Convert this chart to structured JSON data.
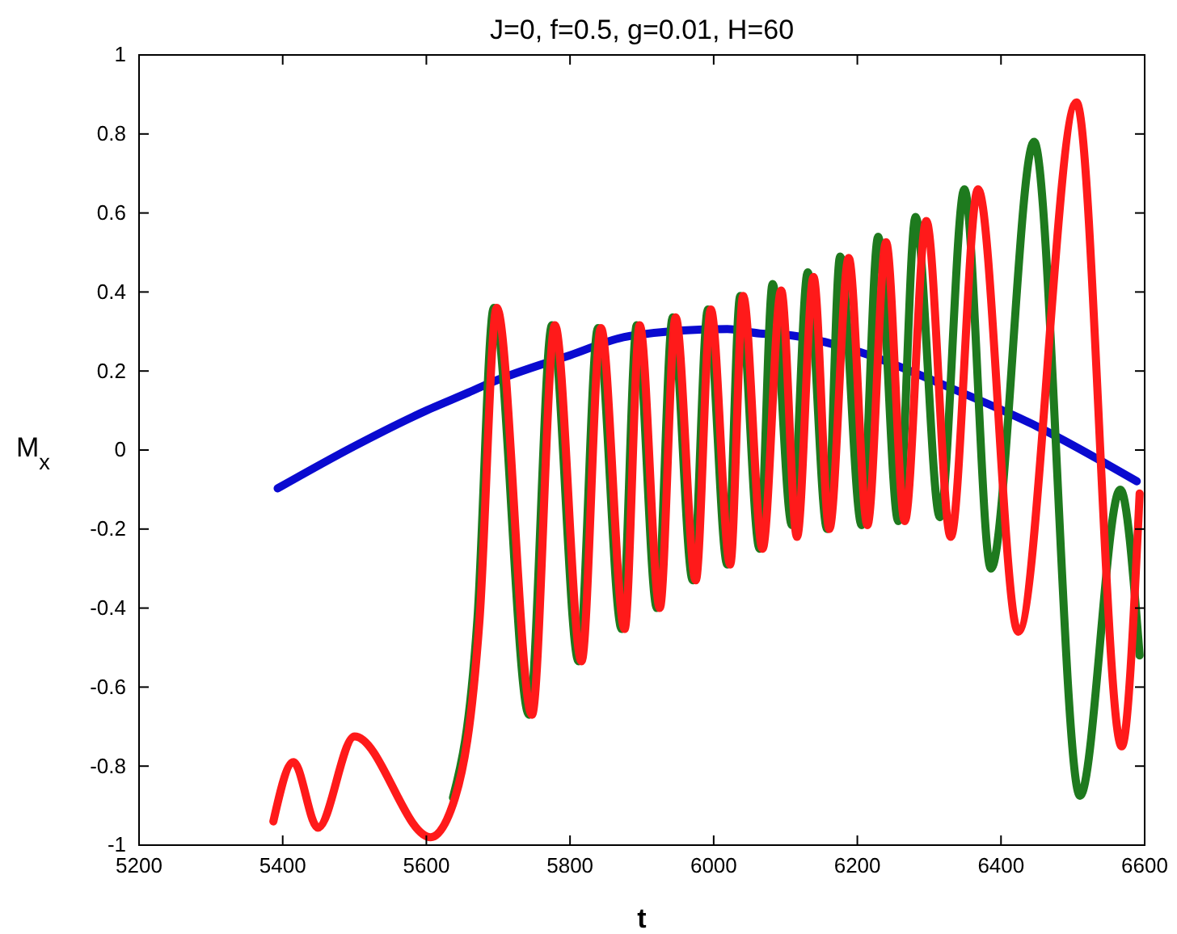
{
  "chart_data": {
    "type": "line",
    "title": "J=0, f=0.5, g=0.01, H=60",
    "xlabel": "t",
    "ylabel": "M$_{x}$",
    "xlim": [
      5200,
      6600
    ],
    "xticks": [
      5200,
      5400,
      5600,
      5800,
      6000,
      6200,
      6400,
      6600
    ],
    "ylim": [
      -1,
      1
    ],
    "yticks": [
      -1,
      -0.8,
      -0.6,
      -0.4,
      -0.2,
      0,
      0.2,
      0.4,
      0.6,
      0.8,
      1
    ],
    "grid": false,
    "marker": "none",
    "line_style": "solid",
    "series": [
      {
        "color": "#0a0ad0",
        "x": [
          5393,
          5500,
          5600,
          5659,
          5689,
          5800,
          5884,
          6019,
          6064,
          6109,
          6200,
          6326,
          6450,
          6589
        ],
        "values": [
          -0.097,
          0.01,
          0.1,
          0.146,
          0.17,
          0.24,
          0.289,
          0.306,
          0.295,
          0.29,
          0.25,
          0.16,
          0.06,
          -0.079
        ]
      },
      {
        "color": "#1e7a1e",
        "x": [
          5637,
          5671,
          5694,
          5743,
          5775,
          5812,
          5839,
          5872,
          5893,
          5921,
          5943,
          5971,
          5992,
          6019,
          6037,
          6064,
          6082,
          6109,
          6131,
          6158,
          6176,
          6206,
          6229,
          6257,
          6281,
          6315,
          6349,
          6386,
          6446,
          6510,
          6566,
          6593
        ],
        "values": [
          -0.88,
          -0.43,
          0.36,
          -0.67,
          0.316,
          -0.535,
          0.309,
          -0.453,
          0.316,
          -0.4,
          0.336,
          -0.33,
          0.356,
          -0.29,
          0.39,
          -0.25,
          0.42,
          -0.19,
          0.45,
          -0.2,
          0.49,
          -0.19,
          0.54,
          -0.18,
          0.59,
          -0.17,
          0.66,
          -0.3,
          0.78,
          -0.875,
          -0.1,
          -0.52
        ]
      },
      {
        "color": "#ff1a1a",
        "x": [
          5387,
          5415,
          5449,
          5500,
          5606,
          5640,
          5674,
          5698,
          5747,
          5779,
          5816,
          5843,
          5876,
          5897,
          5925,
          5947,
          5975,
          5996,
          6023,
          6041,
          6068,
          6094,
          6116,
          6139,
          6161,
          6188,
          6214,
          6240,
          6266,
          6296,
          6330,
          6368,
          6424,
          6505,
          6568,
          6593
        ],
        "values": [
          -0.94,
          -0.79,
          -0.956,
          -0.725,
          -0.98,
          -0.88,
          -0.43,
          0.36,
          -0.67,
          0.316,
          -0.535,
          0.309,
          -0.453,
          0.316,
          -0.4,
          0.336,
          -0.33,
          0.356,
          -0.29,
          0.39,
          -0.25,
          0.404,
          -0.22,
          0.438,
          -0.2,
          0.486,
          -0.19,
          0.526,
          -0.18,
          0.58,
          -0.22,
          0.66,
          -0.46,
          0.88,
          -0.75,
          -0.11
        ]
      }
    ]
  }
}
